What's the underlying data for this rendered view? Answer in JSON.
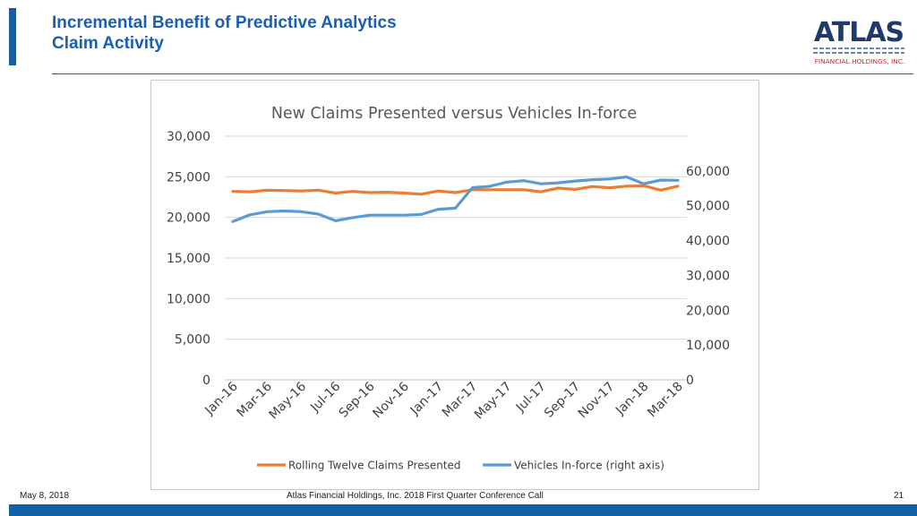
{
  "header": {
    "title_line1": "Incremental Benefit of Predictive Analytics",
    "title_line2": "Claim Activity"
  },
  "logo": {
    "wordmark": "ATLAS",
    "subtitle": "FINANCIAL HOLDINGS, INC."
  },
  "footer": {
    "date": "May 8, 2018",
    "event": "Atlas Financial Holdings, Inc. 2018 First Quarter Conference Call",
    "page": "21"
  },
  "colors": {
    "accent": "#1260a8",
    "title": "#1a5fb4",
    "claims_series": "#ed7d31",
    "vehicles_series": "#5b9bd5"
  },
  "chart_data": {
    "type": "line",
    "title": "New Claims Presented versus Vehicles In-force",
    "categories": [
      "Jan-16",
      "Feb-16",
      "Mar-16",
      "Apr-16",
      "May-16",
      "Jun-16",
      "Jul-16",
      "Aug-16",
      "Sep-16",
      "Oct-16",
      "Nov-16",
      "Dec-16",
      "Jan-17",
      "Feb-17",
      "Mar-17",
      "Apr-17",
      "May-17",
      "Jun-17",
      "Jul-17",
      "Aug-17",
      "Sep-17",
      "Oct-17",
      "Nov-17",
      "Dec-17",
      "Jan-18",
      "Feb-18",
      "Mar-18"
    ],
    "tick_labels": [
      "Jan-16",
      "Mar-16",
      "May-16",
      "Jul-16",
      "Sep-16",
      "Nov-16",
      "Jan-17",
      "Mar-17",
      "May-17",
      "Jul-17",
      "Sep-17",
      "Nov-17",
      "Jan-18",
      "Mar-18"
    ],
    "left_axis": {
      "ylim": [
        0,
        30000
      ],
      "ticks": [
        "0",
        "5,000",
        "10,000",
        "15,000",
        "20,000",
        "25,000",
        "30,000"
      ]
    },
    "right_axis": {
      "ylim": [
        0,
        70000
      ],
      "ticks": [
        "0",
        "10,000",
        "20,000",
        "30,000",
        "40,000",
        "50,000",
        "60,000"
      ]
    },
    "series": [
      {
        "name": "Rolling Twelve Claims Presented",
        "axis": "left",
        "values": [
          23200,
          23150,
          23350,
          23300,
          23250,
          23350,
          23000,
          23200,
          23050,
          23100,
          23000,
          22850,
          23250,
          23050,
          23400,
          23400,
          23400,
          23400,
          23150,
          23600,
          23450,
          23800,
          23650,
          23850,
          23900,
          23350,
          23850
        ]
      },
      {
        "name": "Vehicles In-force (right axis)",
        "axis": "right",
        "values": [
          45500,
          47400,
          48300,
          48500,
          48300,
          47600,
          45700,
          46600,
          47300,
          47300,
          47300,
          47500,
          49000,
          49300,
          55200,
          55600,
          56800,
          57200,
          56300,
          56600,
          57100,
          57500,
          57700,
          58300,
          56300,
          57400,
          57300
        ]
      }
    ]
  }
}
